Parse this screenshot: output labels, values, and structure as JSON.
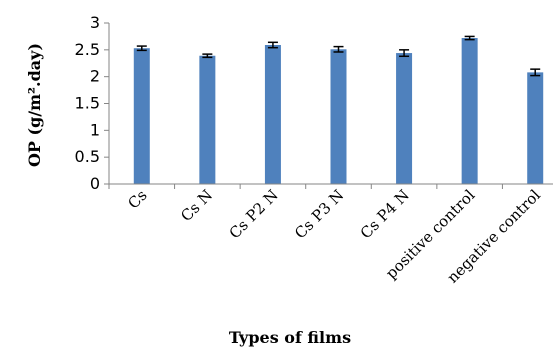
{
  "chart_data": {
    "type": "bar",
    "categories": [
      "Cs",
      "Cs N",
      "Cs P2 N",
      "Cs P3 N",
      "Cs P4 N",
      "positive control",
      "negative control"
    ],
    "values": [
      2.53,
      2.39,
      2.59,
      2.51,
      2.44,
      2.72,
      2.08
    ],
    "errors": [
      0.04,
      0.03,
      0.05,
      0.05,
      0.06,
      0.03,
      0.06
    ],
    "ylim": [
      0,
      3
    ],
    "yticks": [
      0,
      0.5,
      1,
      1.5,
      2,
      2.5,
      3
    ],
    "ytick_labels": [
      "0",
      "0.5",
      "1",
      "1.5",
      "2",
      "2.5",
      "3"
    ],
    "xlabel": "Types of films",
    "ylabel": "OP (g/m².day)",
    "grid": false,
    "legend": false,
    "colors": {
      "bar": "#4f81bd",
      "axis": "#868686"
    }
  }
}
